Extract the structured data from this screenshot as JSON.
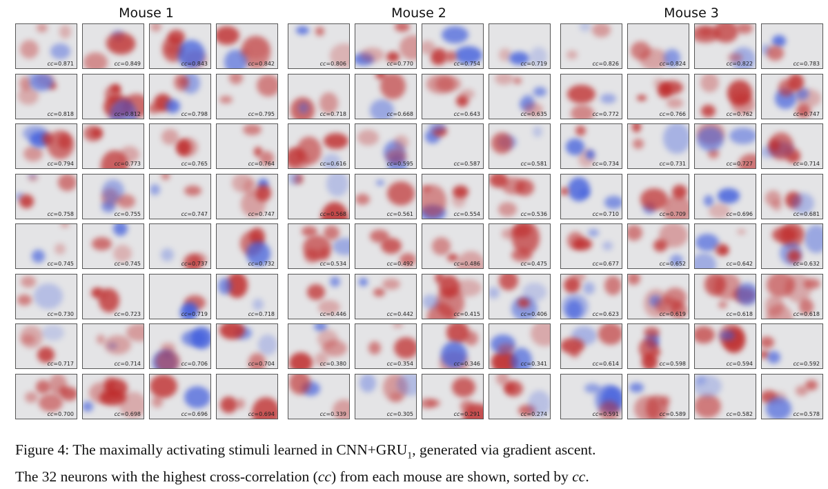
{
  "panels": [
    {
      "title": "Mouse 1",
      "cc": [
        "0.871",
        "0.849",
        "0.843",
        "0.842",
        "0.818",
        "0.812",
        "0.798",
        "0.795",
        "0.794",
        "0.773",
        "0.765",
        "0.764",
        "0.758",
        "0.755",
        "0.747",
        "0.747",
        "0.745",
        "0.745",
        "0.737",
        "0.732",
        "0.730",
        "0.723",
        "0.719",
        "0.718",
        "0.717",
        "0.714",
        "0.706",
        "0.704",
        "0.700",
        "0.698",
        "0.696",
        "0.694"
      ]
    },
    {
      "title": "Mouse 2",
      "cc": [
        "0.806",
        "0.770",
        "0.754",
        "0.719",
        "0.718",
        "0.668",
        "0.643",
        "0.635",
        "0.616",
        "0.595",
        "0.587",
        "0.581",
        "0.568",
        "0.561",
        "0.554",
        "0.536",
        "0.534",
        "0.492",
        "0.486",
        "0.475",
        "0.446",
        "0.442",
        "0.415",
        "0.406",
        "0.380",
        "0.354",
        "0.346",
        "0.341",
        "0.339",
        "0.305",
        "0.291",
        "0.274"
      ]
    },
    {
      "title": "Mouse 3",
      "cc": [
        "0.826",
        "0.824",
        "0.822",
        "0.783",
        "0.772",
        "0.766",
        "0.762",
        "0.747",
        "0.734",
        "0.731",
        "0.727",
        "0.714",
        "0.710",
        "0.709",
        "0.696",
        "0.681",
        "0.677",
        "0.652",
        "0.642",
        "0.632",
        "0.623",
        "0.619",
        "0.618",
        "0.618",
        "0.614",
        "0.598",
        "0.594",
        "0.592",
        "0.591",
        "0.589",
        "0.582",
        "0.578"
      ]
    }
  ],
  "cc_prefix": "cc=",
  "caption": {
    "line1_a": "Figure 4: The maximally activating stimuli learned in CNN+GRU",
    "line1_sub": "1",
    "line1_b": ", generated via gradient ascent.",
    "line2_a": "The 32 neurons with the highest cross-correlation (",
    "line2_cc1": "cc",
    "line2_b": ") from each mouse are shown, sorted by ",
    "line2_cc2": "cc",
    "line2_c": "."
  },
  "colors": {
    "positive": "#b2182b",
    "negative": "#2c4fd6",
    "neutral": "#e4e4e6"
  }
}
